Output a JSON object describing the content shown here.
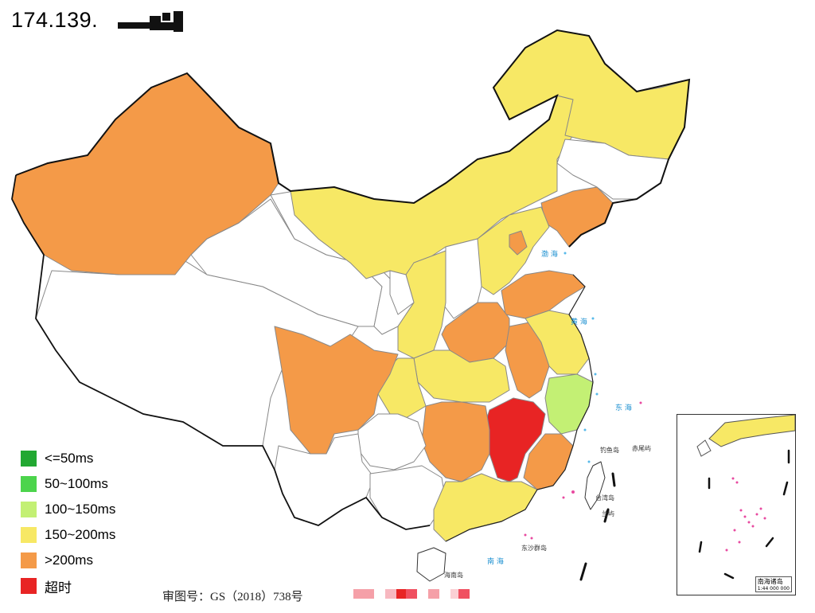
{
  "title": "174.139.",
  "colors": {
    "timeout": "#e82424",
    "over200": "#f49a48",
    "150to200": "#f7e865",
    "100to150": "#c3f074",
    "50to100": "#4cd44c",
    "under50": "#22a832",
    "nodata": "#ffffff",
    "border": "#888888",
    "coast": "#222222"
  },
  "legend": [
    {
      "label": "<=50ms",
      "color": "#22a832"
    },
    {
      "label": "50~100ms",
      "color": "#4cd44c"
    },
    {
      "label": "100~150ms",
      "color": "#c3f074"
    },
    {
      "label": "150~200ms",
      "color": "#f7e865"
    },
    {
      "label": ">200ms",
      "color": "#f49a48"
    },
    {
      "label": "超时",
      "color": "#e82424"
    }
  ],
  "approval_number": "审图号：GS（2018）738号",
  "regions": [
    {
      "name": "Xinjiang",
      "category": ">200ms"
    },
    {
      "name": "Tibet",
      "category": "no data"
    },
    {
      "name": "Qinghai",
      "category": "no data"
    },
    {
      "name": "Gansu",
      "category": "no data"
    },
    {
      "name": "Inner Mongolia",
      "category": "150~200ms"
    },
    {
      "name": "Heilongjiang",
      "category": "150~200ms"
    },
    {
      "name": "Jilin",
      "category": "no data"
    },
    {
      "name": "Liaoning",
      "category": ">200ms"
    },
    {
      "name": "Hebei",
      "category": "150~200ms"
    },
    {
      "name": "Beijing",
      "category": ">200ms"
    },
    {
      "name": "Shanxi",
      "category": "no data"
    },
    {
      "name": "Shandong",
      "category": ">200ms"
    },
    {
      "name": "Henan",
      "category": ">200ms"
    },
    {
      "name": "Shaanxi",
      "category": "150~200ms"
    },
    {
      "name": "Ningxia",
      "category": "no data"
    },
    {
      "name": "Sichuan",
      "category": ">200ms"
    },
    {
      "name": "Chongqing",
      "category": "150~200ms"
    },
    {
      "name": "Hubei",
      "category": "150~200ms"
    },
    {
      "name": "Anhui",
      "category": ">200ms"
    },
    {
      "name": "Jiangsu",
      "category": "150~200ms"
    },
    {
      "name": "Zhejiang",
      "category": "100~150ms"
    },
    {
      "name": "Jiangxi",
      "category": "超时"
    },
    {
      "name": "Hunan",
      "category": ">200ms"
    },
    {
      "name": "Fujian",
      "category": ">200ms"
    },
    {
      "name": "Guangdong",
      "category": "150~200ms"
    },
    {
      "name": "Guangxi",
      "category": "no data"
    },
    {
      "name": "Guizhou",
      "category": "no data"
    },
    {
      "name": "Yunnan",
      "category": "no data"
    },
    {
      "name": "Hainan",
      "category": "no data"
    },
    {
      "name": "Taiwan",
      "category": "no data"
    }
  ],
  "map_labels": {
    "bohai": "渤 海",
    "huanghai": "黄 海",
    "donghai": "东 海",
    "nanhai": "南 海",
    "diaoyu": "钓鱼岛",
    "chiwei": "赤尾屿",
    "taiwan": "台湾岛",
    "lanyu": "兰屿",
    "dongsha": "东沙群岛",
    "hainan": "海南岛",
    "inset_title": "南海诸岛",
    "inset_scale": "1:44 000 000"
  }
}
